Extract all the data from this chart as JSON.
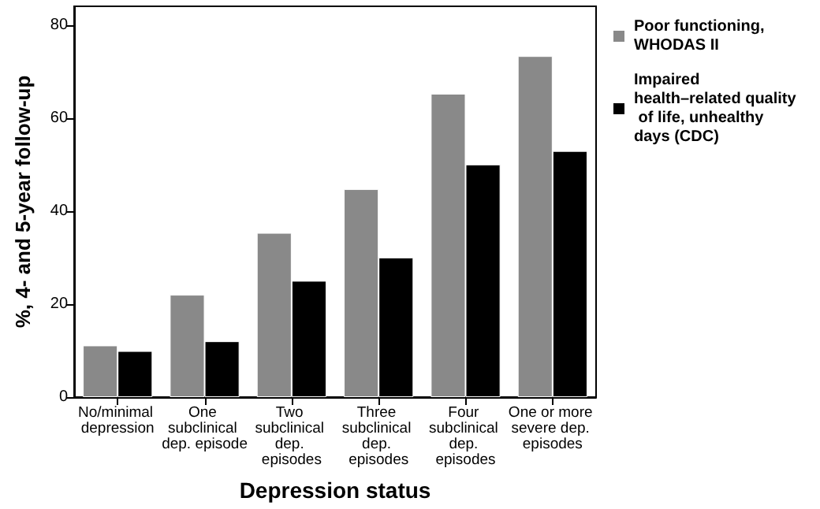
{
  "chart_data": {
    "type": "bar",
    "xlabel": "Depression status",
    "ylabel": "%, 4- and 5-year follow-up",
    "categories": [
      "No/minimal depression",
      "One subclinical dep. episode",
      "Two subclinical dep. episodes",
      "Three subclinical dep. episodes",
      "Four subclinical dep. episodes",
      "One or more severe dep. episodes"
    ],
    "series": [
      {
        "name": "Poor functioning, WHODAS II",
        "color": "#898989",
        "values": [
          11.1,
          22,
          35.3,
          44.7,
          65.2,
          73.3
        ]
      },
      {
        "name": "Impaired health–related quality of life, unhealthy days (CDC)",
        "color": "#000000",
        "values": [
          9.9,
          12,
          25,
          30,
          50,
          52.9
        ]
      }
    ],
    "ylim": [
      0,
      84
    ],
    "yticks": [
      0,
      20,
      40,
      60,
      80
    ],
    "grid": false,
    "legend": "right"
  }
}
